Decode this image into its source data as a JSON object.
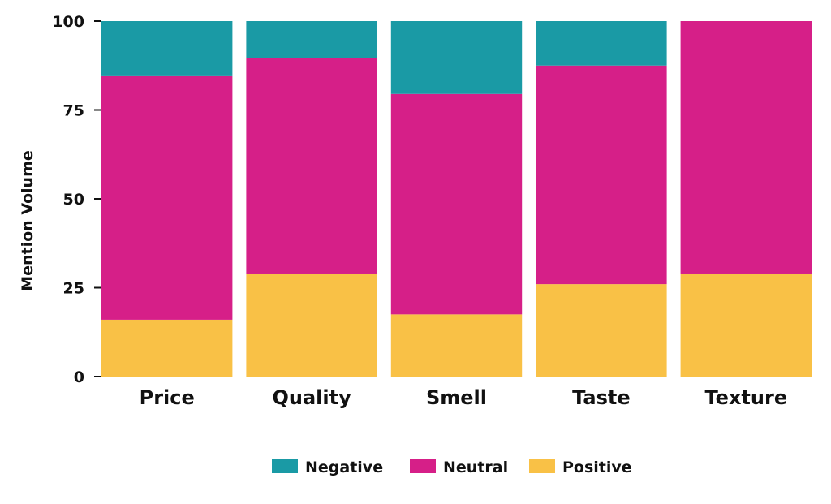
{
  "chart_data": {
    "type": "bar",
    "stacked": true,
    "title": "",
    "xlabel": "",
    "ylabel": "Mention Volume",
    "ylim": [
      0,
      100
    ],
    "yticks": [
      "0",
      "25",
      "50",
      "75",
      "100"
    ],
    "categories": [
      "Price",
      "Quality",
      "Smell",
      "Taste",
      "Texture"
    ],
    "series": [
      {
        "name": "Positive",
        "color": "#f9c146",
        "values": [
          16,
          29,
          17.5,
          26,
          29
        ]
      },
      {
        "name": "Neutral",
        "color": "#d61f88",
        "values": [
          68.5,
          60.5,
          62,
          61.5,
          71
        ]
      },
      {
        "name": "Negative",
        "color": "#1a9aa5",
        "values": [
          15.5,
          10.5,
          20.5,
          12.5,
          0
        ]
      }
    ],
    "legend": {
      "placement": "bottom",
      "order": [
        "Negative",
        "Neutral",
        "Positive"
      ]
    },
    "grid": false
  }
}
